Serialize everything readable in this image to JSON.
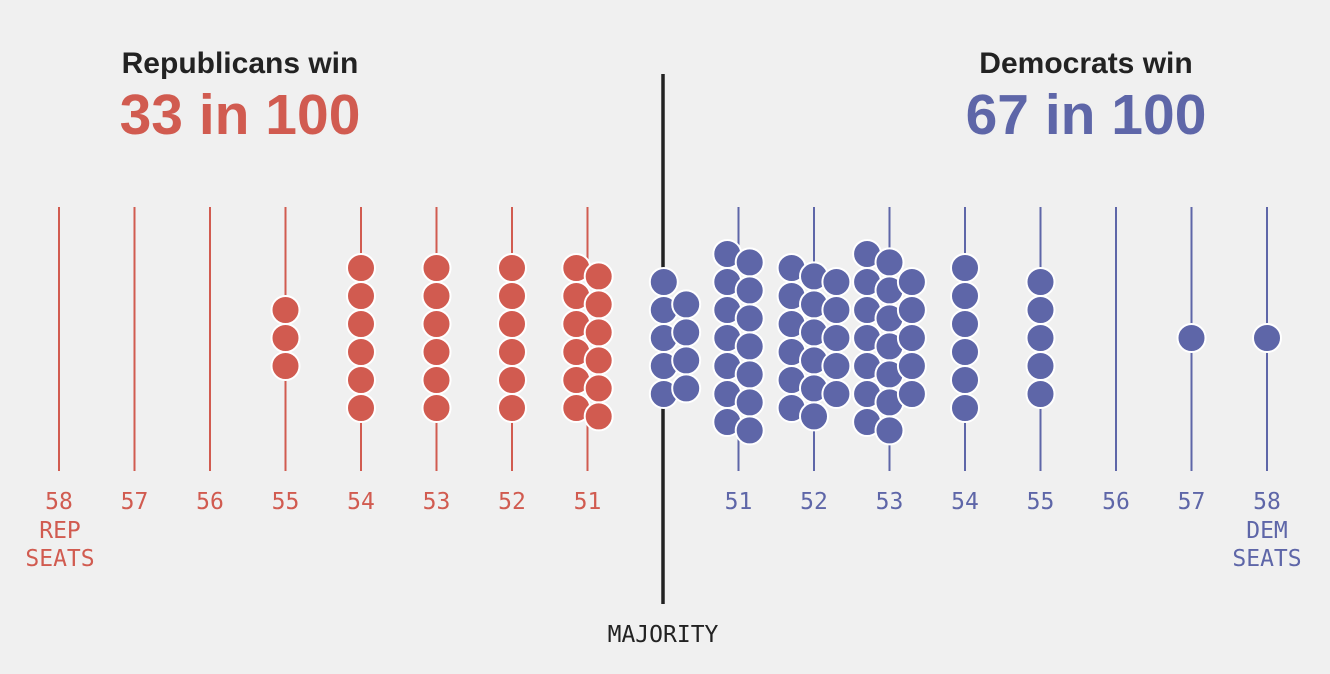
{
  "chart_data": {
    "type": "dot-histogram",
    "title_left": "Republicans win",
    "value_left": "33 in 100",
    "title_right": "Democrats win",
    "value_right": "67 in 100",
    "majority_label": "MAJORITY",
    "rep_axis_label": [
      "REP",
      "SEATS"
    ],
    "dem_axis_label": [
      "DEM",
      "SEATS"
    ],
    "x_unit": "seats for the winning party",
    "colors": {
      "rep": "#d15b50",
      "dem": "#5e66a8",
      "majority": "#222222"
    },
    "series": [
      {
        "name": "Republicans",
        "party": "rep",
        "categories": [
          "58",
          "57",
          "56",
          "55",
          "54",
          "53",
          "52",
          "51"
        ],
        "seats": [
          58,
          57,
          56,
          55,
          54,
          53,
          52,
          51
        ],
        "outcomes": [
          0,
          0,
          0,
          3,
          6,
          6,
          6,
          12
        ]
      },
      {
        "name": "Democrats",
        "party": "dem",
        "majority_dots": 9,
        "categories": [
          "51",
          "52",
          "53",
          "54",
          "55",
          "56",
          "57",
          "58"
        ],
        "seats": [
          51,
          52,
          53,
          54,
          55,
          56,
          57,
          58
        ],
        "outcomes": [
          14,
          17,
          19,
          6,
          5,
          0,
          1,
          1
        ]
      }
    ]
  }
}
